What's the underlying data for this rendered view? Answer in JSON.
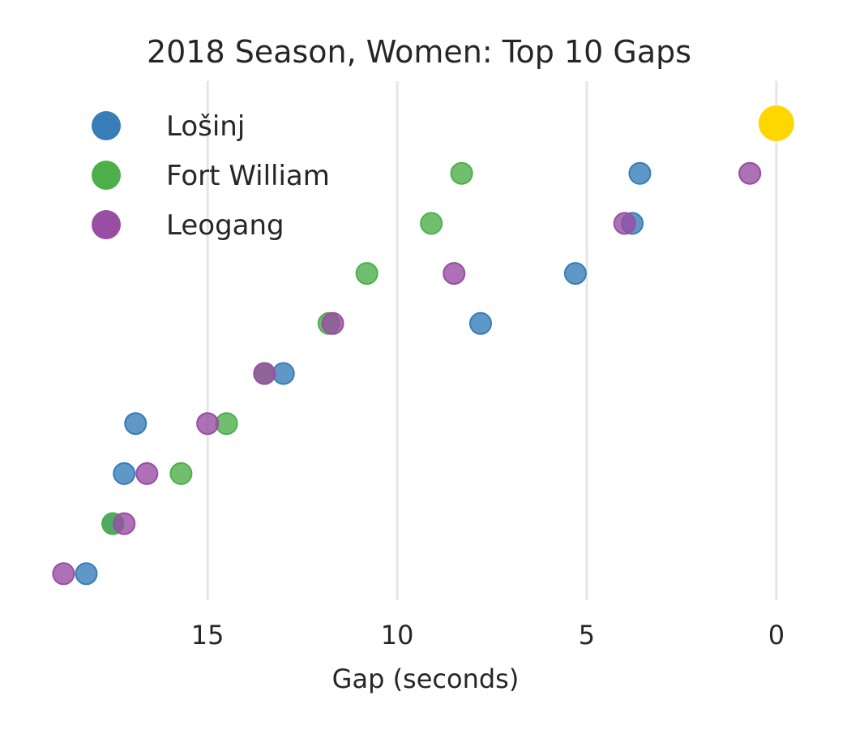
{
  "chart_data": {
    "type": "scatter",
    "title": "2018 Season, Women: Top 10 Gaps",
    "xlabel": "Gap (seconds)",
    "ylabel": "",
    "xlim": [
      19.3,
      -0.9
    ],
    "x_reversed": true,
    "xticks": [
      15,
      10,
      5,
      0
    ],
    "grid": "vertical",
    "legend_position": "upper left",
    "rows": 10,
    "leader": {
      "row": 1,
      "x": 0,
      "color": "#ffd700"
    },
    "series": [
      {
        "name": "Lošinj",
        "color": "#377eb8",
        "points": [
          {
            "row": 2,
            "x": 3.6
          },
          {
            "row": 3,
            "x": 3.8
          },
          {
            "row": 4,
            "x": 5.3
          },
          {
            "row": 5,
            "x": 7.8
          },
          {
            "row": 6,
            "x": 13.0
          },
          {
            "row": 7,
            "x": 16.9
          },
          {
            "row": 8,
            "x": 17.2
          },
          {
            "row": 9,
            "x": 17.5
          },
          {
            "row": 10,
            "x": 18.2
          }
        ]
      },
      {
        "name": "Fort William",
        "color": "#4daf4a",
        "points": [
          {
            "row": 2,
            "x": 8.3
          },
          {
            "row": 3,
            "x": 9.1
          },
          {
            "row": 4,
            "x": 10.8
          },
          {
            "row": 5,
            "x": 11.8
          },
          {
            "row": 6,
            "x": 13.5
          },
          {
            "row": 7,
            "x": 14.5
          },
          {
            "row": 8,
            "x": 15.7
          },
          {
            "row": 9,
            "x": 17.5
          }
        ]
      },
      {
        "name": "Leogang",
        "color": "#984ea3",
        "points": [
          {
            "row": 2,
            "x": 0.7
          },
          {
            "row": 3,
            "x": 4.0
          },
          {
            "row": 4,
            "x": 8.5
          },
          {
            "row": 5,
            "x": 11.7
          },
          {
            "row": 6,
            "x": 13.5
          },
          {
            "row": 7,
            "x": 15.0
          },
          {
            "row": 8,
            "x": 16.6
          },
          {
            "row": 9,
            "x": 17.2
          },
          {
            "row": 10,
            "x": 18.8
          }
        ]
      }
    ]
  }
}
